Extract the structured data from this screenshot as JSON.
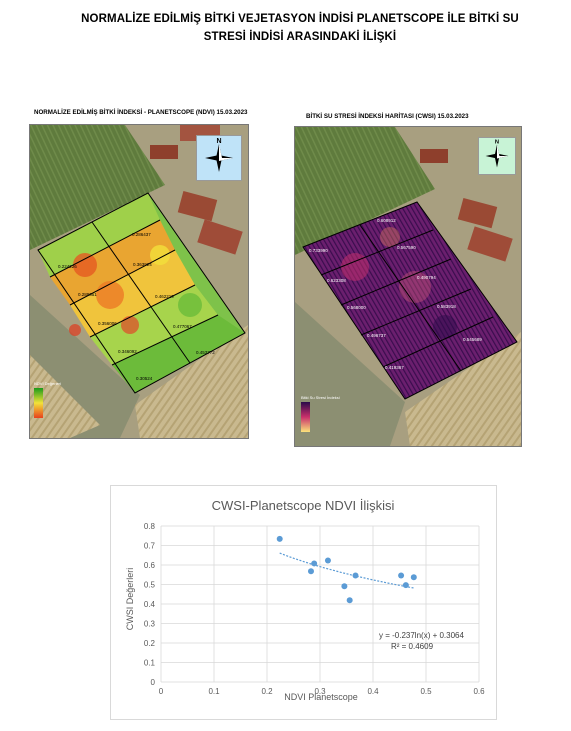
{
  "title_line1": "NORMALİZE EDİLMİŞ BİTKİ VEJETASYON İNDİSİ PLANETSCOPE İLE BİTKİ SU",
  "title_line2": "STRESİ İNDİSİ ARASINDAKİ İLİŞKİ",
  "ndvi_map": {
    "title": "NORMALİZE EDİLMİŞ BİTKİ İNDEKSİ - PLANETSCOPE (NDVI) 15.03.2023",
    "compass_label": "N",
    "legend_title": "NDVI Değerleri",
    "plot_labels": [
      "0.286437",
      "0.224226",
      "0.363924",
      "0.289651",
      "0.462219",
      "0.356006",
      "0.477067",
      "0.346092",
      "0.453772",
      "0.30524"
    ]
  },
  "cwsi_map": {
    "title": "BİTKİ SU STRESİ İNDEKSİ HARİTASI (CWSI) 15.03.2023",
    "compass_label": "N",
    "legend_title": "Bitki Su Stresi İndeksi",
    "plot_labels": [
      "0.608912",
      "0.733990",
      "0.567590",
      "0.623308",
      "0.490794",
      "0.568000",
      "0.583918",
      "0.496737",
      "0.545689",
      "0.419367"
    ]
  },
  "colors": {
    "ndvi_high": "#1a9a1a",
    "ndvi_mid": "#f2e23a",
    "ndvi_low": "#e8401c",
    "cwsi_low": "#2b0a4a",
    "cwsi_mid": "#c9306b",
    "cwsi_high": "#fbe37a",
    "point": "#5b9bd5",
    "trend": "#5b9bd5",
    "grid": "#d9d9d9",
    "axis_text": "#595959"
  },
  "chart_data": {
    "type": "scatter",
    "title": "CWSI-Planetscope NDVI İlişkisi",
    "xlabel": "NDVI Planetscope",
    "ylabel": "CWSI Değerleri",
    "xlim": [
      0,
      0.6
    ],
    "ylim": [
      0,
      0.8
    ],
    "x_ticks": [
      "0",
      "0.1",
      "0.2",
      "0.3",
      "0.4",
      "0.5",
      "0.6"
    ],
    "y_ticks": [
      "0",
      "0.1",
      "0.2",
      "0.3",
      "0.4",
      "0.5",
      "0.6",
      "0.7",
      "0.8"
    ],
    "grid": true,
    "series": [
      {
        "points": [
          [
            0.224,
            0.734
          ],
          [
            0.283,
            0.568
          ],
          [
            0.289,
            0.608
          ],
          [
            0.315,
            0.623
          ],
          [
            0.346,
            0.491
          ],
          [
            0.356,
            0.419
          ],
          [
            0.367,
            0.546
          ],
          [
            0.453,
            0.546
          ],
          [
            0.462,
            0.497
          ],
          [
            0.477,
            0.537
          ]
        ]
      }
    ],
    "trendline": {
      "type": "logarithmic",
      "a": -0.237,
      "b": 0.3064,
      "x_range": [
        0.224,
        0.477
      ]
    },
    "equation": "y = -0.237ln(x) + 0.3064",
    "r_squared": "R² = 0.4609"
  }
}
